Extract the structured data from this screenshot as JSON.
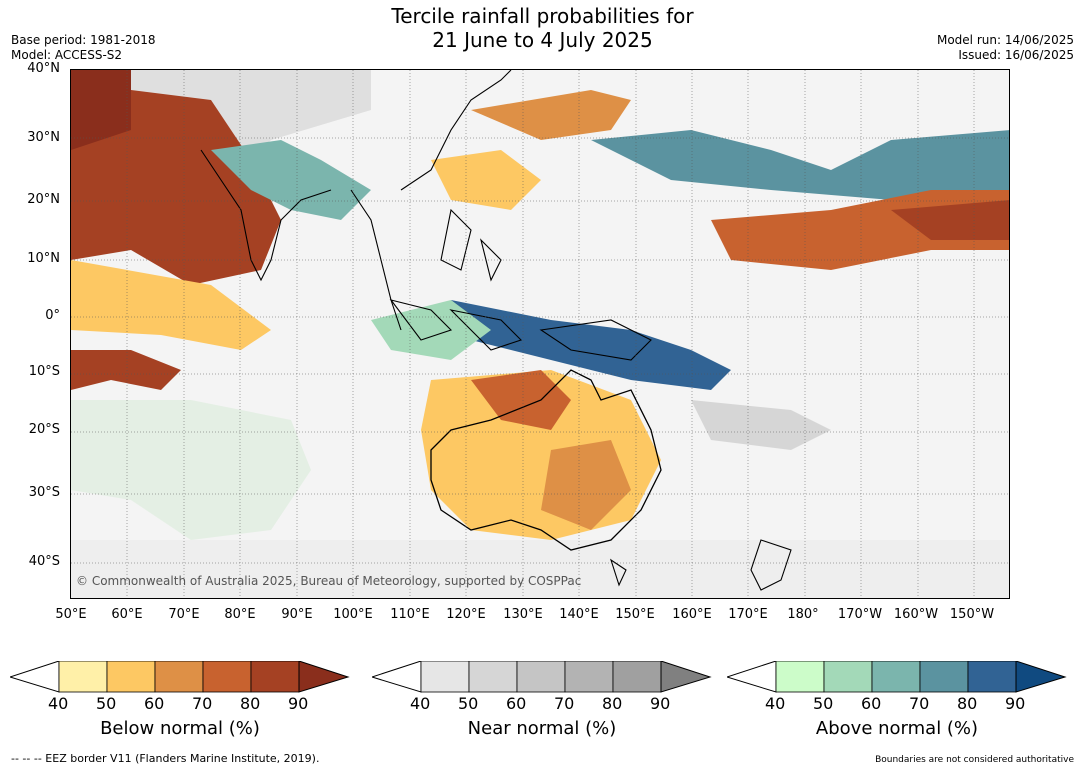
{
  "title_line1": "Tercile rainfall probabilities for",
  "title_line2": "21 June to 4 July 2025",
  "base_period": "Base period: 1981-2018",
  "model": "Model: ACCESS-S2",
  "model_run": "Model run: 14/06/2025",
  "issued": "Issued: 16/06/2025",
  "lat_labels": [
    "40°N",
    "30°N",
    "20°N",
    "10°N",
    "0°",
    "10°S",
    "20°S",
    "30°S",
    "40°S"
  ],
  "lon_labels": [
    "50°E",
    "60°E",
    "70°E",
    "80°E",
    "90°E",
    "100°E",
    "110°E",
    "120°E",
    "130°E",
    "140°E",
    "150°E",
    "160°E",
    "170°E",
    "180°",
    "170°W",
    "160°W",
    "150°W"
  ],
  "copyright": "© Commonwealth of Australia 2025, Bureau of Meteorology, supported by COSPPac",
  "legends": [
    {
      "title": "Below normal (%)",
      "ticks": [
        "40",
        "50",
        "60",
        "70",
        "80",
        "90"
      ],
      "colors": [
        "#fff0a8",
        "#fdc863",
        "#de9046",
        "#c8622f",
        "#a54123",
        "#8a2e1c"
      ]
    },
    {
      "title": "Near normal (%)",
      "ticks": [
        "40",
        "50",
        "60",
        "70",
        "80",
        "90"
      ],
      "colors": [
        "#e6e6e6",
        "#d6d6d6",
        "#c5c5c5",
        "#b3b3b3",
        "#a0a0a0",
        "#808080"
      ]
    },
    {
      "title": "Above normal (%)",
      "ticks": [
        "40",
        "50",
        "60",
        "70",
        "80",
        "90"
      ],
      "colors": [
        "#ccfcc9",
        "#a3d9b8",
        "#7bb5ad",
        "#5b93a0",
        "#316394",
        "#104a80"
      ]
    }
  ],
  "footer_left": "--  --  -- EEZ border V11 (Flanders Marine Institute, 2019).",
  "footer_right": "Boundaries are not considered authoritative"
}
